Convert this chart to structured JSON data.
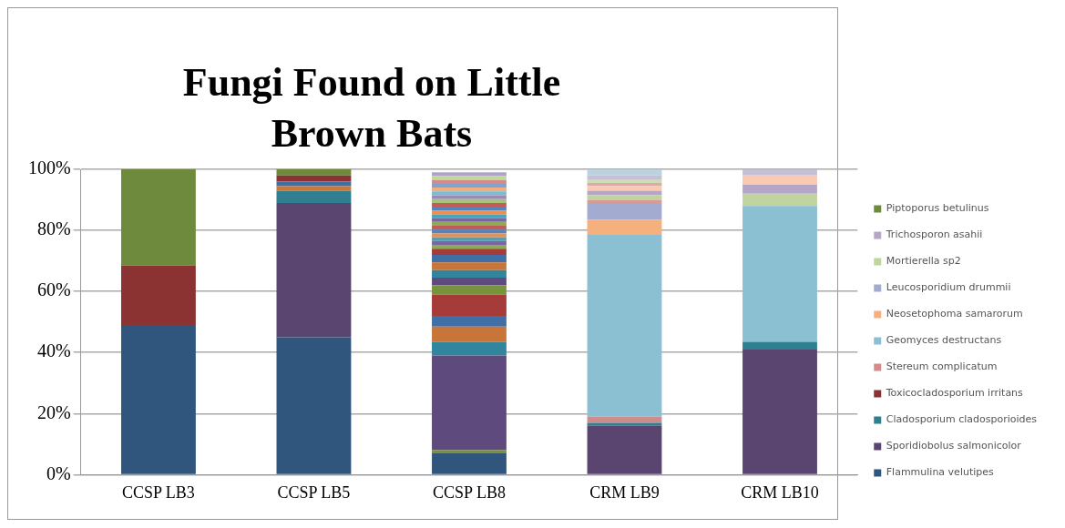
{
  "chart_data": {
    "type": "bar",
    "title": "Fungi Found on Little Brown Bats",
    "categories": [
      "CCSP LB3",
      "CCSP LB5",
      "CCSP LB8",
      "CRM LB9",
      "CRM LB10"
    ],
    "stacked": true,
    "ylim": [
      0,
      100
    ],
    "yticks": [
      {
        "value": 0,
        "label": "0%"
      },
      {
        "value": 20,
        "label": "20%"
      },
      {
        "value": 40,
        "label": "40%"
      },
      {
        "value": 60,
        "label": "60%"
      },
      {
        "value": 80,
        "label": "80%"
      },
      {
        "value": 100,
        "label": "100%"
      }
    ],
    "grid": "y",
    "legend": "right",
    "series": [
      {
        "name": "Flammulina velutipes",
        "color": "#31567d",
        "values": [
          49,
          45,
          null,
          null,
          null
        ]
      },
      {
        "name": "Sporidiobolus salmonicolor",
        "color": "#5a4570",
        "values": [
          null,
          44,
          null,
          16,
          41
        ]
      },
      {
        "name": "Cladosporium cladosporioides",
        "color": "#2f7f90",
        "values": [
          null,
          4,
          null,
          1,
          2.5
        ]
      },
      {
        "color": "#c97a3a",
        "values": [
          null,
          1.5,
          null,
          null,
          null
        ]
      },
      {
        "color": "#3f6fa6",
        "values": [
          null,
          1.5,
          null,
          null,
          null
        ]
      },
      {
        "name": "Toxicocladosporium irritans",
        "color": "#8b3333",
        "values": [
          19.5,
          2,
          null,
          null,
          null
        ]
      },
      {
        "name": "Stereum complicatum",
        "color": "#d08c8a",
        "values": [
          null,
          null,
          null,
          2,
          null
        ]
      },
      {
        "name": "Geomyces destructans",
        "color": "#8bbfd2",
        "values": [
          null,
          null,
          null,
          59.5,
          44.5
        ]
      },
      {
        "name": "Neosetophoma samarorum",
        "color": "#f5b07e",
        "values": [
          null,
          null,
          null,
          5,
          null
        ]
      },
      {
        "name": "Leucosporidium drummii",
        "color": "#a3acd0",
        "values": [
          null,
          null,
          null,
          5.5,
          null
        ]
      },
      {
        "color": "#d89a94",
        "values": [
          null,
          null,
          null,
          1,
          null
        ]
      },
      {
        "name": "Mortierella sp2",
        "color": "#c1d4a0",
        "values": [
          null,
          null,
          null,
          1.5,
          4
        ]
      },
      {
        "name": "Trichosporon asahii",
        "color": "#b5a6c9",
        "values": [
          null,
          null,
          null,
          1.5,
          3
        ]
      },
      {
        "color": "#f9c9b2",
        "values": [
          null,
          null,
          null,
          1.5,
          3
        ]
      },
      {
        "color": "#e0a9a6",
        "values": [
          null,
          null,
          null,
          1,
          null
        ]
      },
      {
        "color": "#cfdcb6",
        "values": [
          null,
          null,
          null,
          1,
          null
        ]
      },
      {
        "color": "#c4c0d6",
        "values": [
          null,
          null,
          null,
          1.5,
          2
        ]
      },
      {
        "color": "#bcd2de",
        "values": [
          null,
          null,
          null,
          2,
          null
        ]
      },
      {
        "name": "Piptoporus betulinus",
        "color": "#6e8a3c",
        "values": [
          31.5,
          2,
          null,
          null,
          null
        ]
      },
      {
        "color": "#31567d",
        "values": [
          null,
          null,
          7,
          null,
          null
        ]
      },
      {
        "color": "#77933c",
        "values": [
          null,
          null,
          1,
          null,
          null
        ]
      },
      {
        "color": "#5f4a7d",
        "values": [
          null,
          null,
          31,
          null,
          null
        ]
      },
      {
        "color": "#31859c",
        "values": [
          null,
          null,
          4.5,
          null,
          null
        ]
      },
      {
        "color": "#c8753a",
        "values": [
          null,
          null,
          5,
          null,
          null
        ]
      },
      {
        "color": "#3f6fa6",
        "values": [
          null,
          null,
          3.5,
          null,
          null
        ]
      },
      {
        "color": "#a63c3a",
        "values": [
          null,
          null,
          7,
          null,
          null
        ]
      },
      {
        "color": "#77933c",
        "values": [
          null,
          null,
          3,
          null,
          null
        ]
      },
      {
        "color": "#5f4a7d",
        "values": [
          null,
          null,
          2.5,
          null,
          null
        ]
      },
      {
        "color": "#31859c",
        "values": [
          null,
          null,
          2.5,
          null,
          null
        ]
      },
      {
        "color": "#c8753a",
        "values": [
          null,
          null,
          2.5,
          null,
          null
        ]
      },
      {
        "color": "#3f6fa6",
        "values": [
          null,
          null,
          2.5,
          null,
          null
        ]
      },
      {
        "color": "#a63c3a",
        "values": [
          null,
          null,
          2,
          null,
          null
        ]
      },
      {
        "color": "#8fa958",
        "values": [
          null,
          null,
          1.25,
          null,
          null
        ]
      },
      {
        "color": "#7a67a0",
        "values": [
          null,
          null,
          1.25,
          null,
          null
        ]
      },
      {
        "color": "#4aa3bc",
        "values": [
          null,
          null,
          1.25,
          null,
          null
        ]
      },
      {
        "color": "#e98f4f",
        "values": [
          null,
          null,
          1.25,
          null,
          null
        ]
      },
      {
        "color": "#5583bd",
        "values": [
          null,
          null,
          1.25,
          null,
          null
        ]
      },
      {
        "color": "#c05c59",
        "values": [
          null,
          null,
          1.25,
          null,
          null
        ]
      },
      {
        "color": "#8fa958",
        "values": [
          null,
          null,
          1.25,
          null,
          null
        ]
      },
      {
        "color": "#7a67a0",
        "values": [
          null,
          null,
          1.25,
          null,
          null
        ]
      },
      {
        "color": "#4aa3bc",
        "values": [
          null,
          null,
          1.25,
          null,
          null
        ]
      },
      {
        "color": "#e98f4f",
        "values": [
          null,
          null,
          1.25,
          null,
          null
        ]
      },
      {
        "color": "#5583bd",
        "values": [
          null,
          null,
          1.25,
          null,
          null
        ]
      },
      {
        "color": "#c05c59",
        "values": [
          null,
          null,
          1.25,
          null,
          null
        ]
      },
      {
        "color": "#a8c27a",
        "values": [
          null,
          null,
          1.25,
          null,
          null
        ]
      },
      {
        "color": "#9b8bbd",
        "values": [
          null,
          null,
          1.25,
          null,
          null
        ]
      },
      {
        "color": "#7cbcd0",
        "values": [
          null,
          null,
          1.25,
          null,
          null
        ]
      },
      {
        "color": "#f2ae7e",
        "values": [
          null,
          null,
          1.25,
          null,
          null
        ]
      },
      {
        "color": "#82a2cf",
        "values": [
          null,
          null,
          1.25,
          null,
          null
        ]
      },
      {
        "color": "#d48a88",
        "values": [
          null,
          null,
          1.25,
          null,
          null
        ]
      },
      {
        "color": "#c3d69b",
        "values": [
          null,
          null,
          1.25,
          null,
          null
        ]
      },
      {
        "color": "#b0a3c8",
        "values": [
          null,
          null,
          1.25,
          null,
          null
        ]
      }
    ]
  }
}
